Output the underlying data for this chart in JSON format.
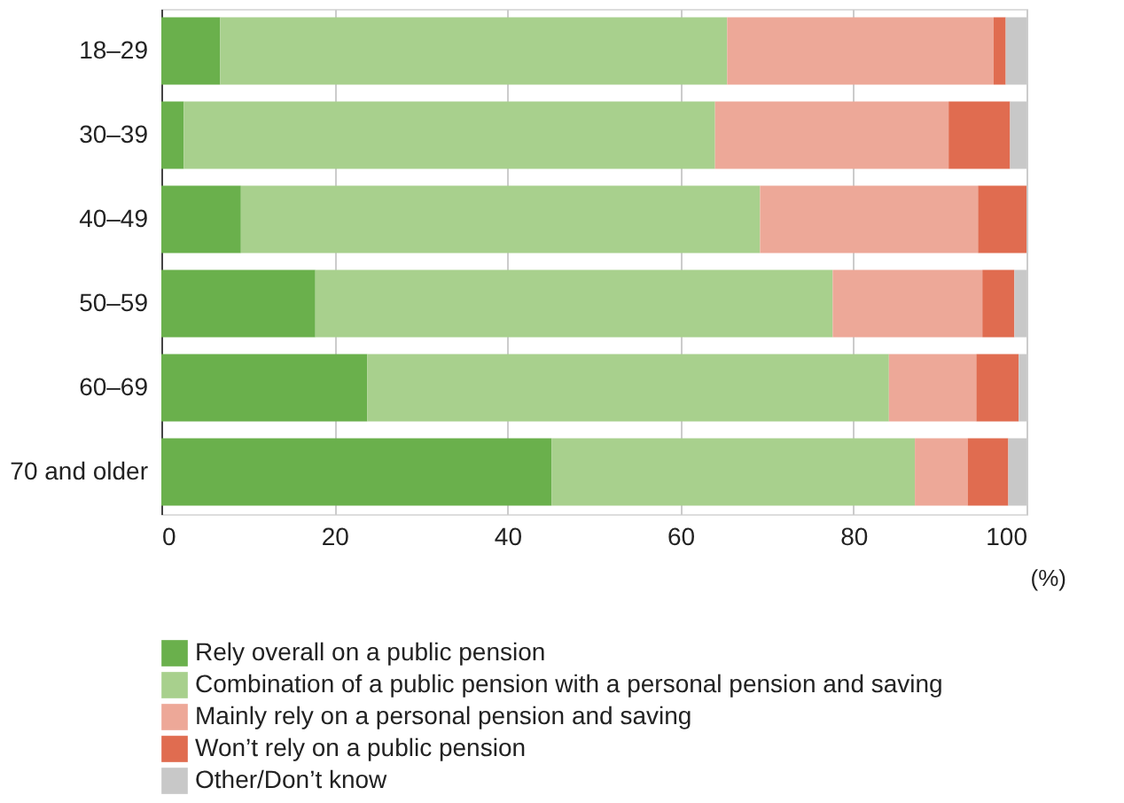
{
  "chart_data": {
    "type": "bar",
    "orientation": "horizontal",
    "stacked": true,
    "xlabel": "(%)",
    "categories": [
      "18–29",
      "30–39",
      "40–49",
      "50–59",
      "60–69",
      "70 and older"
    ],
    "series": [
      {
        "name": "Rely overall on a public pension",
        "color": "#6ab04c",
        "values": [
          6.8,
          2.6,
          9.2,
          17.8,
          23.8,
          45.1
        ]
      },
      {
        "name": "Combination of a public pension with a personal pension and saving",
        "color": "#a8d08d",
        "values": [
          58.6,
          61.4,
          60.0,
          59.8,
          60.3,
          42.0
        ]
      },
      {
        "name": "Mainly rely on a personal pension and saving",
        "color": "#eda898",
        "values": [
          30.8,
          27.0,
          25.2,
          17.3,
          10.1,
          6.1
        ]
      },
      {
        "name": "Won’t rely on a public pension",
        "color": "#e06c50",
        "values": [
          1.4,
          7.1,
          5.6,
          3.7,
          4.9,
          4.7
        ]
      },
      {
        "name": "Other/Don’t know",
        "color": "#c8c8c8",
        "values": [
          2.4,
          1.9,
          0,
          1.4,
          0.9,
          2.1
        ]
      }
    ],
    "xlim": [
      0,
      100
    ],
    "xticks": [
      0,
      20,
      40,
      60,
      80,
      100
    ],
    "grid": "x",
    "legend": "bottom"
  }
}
